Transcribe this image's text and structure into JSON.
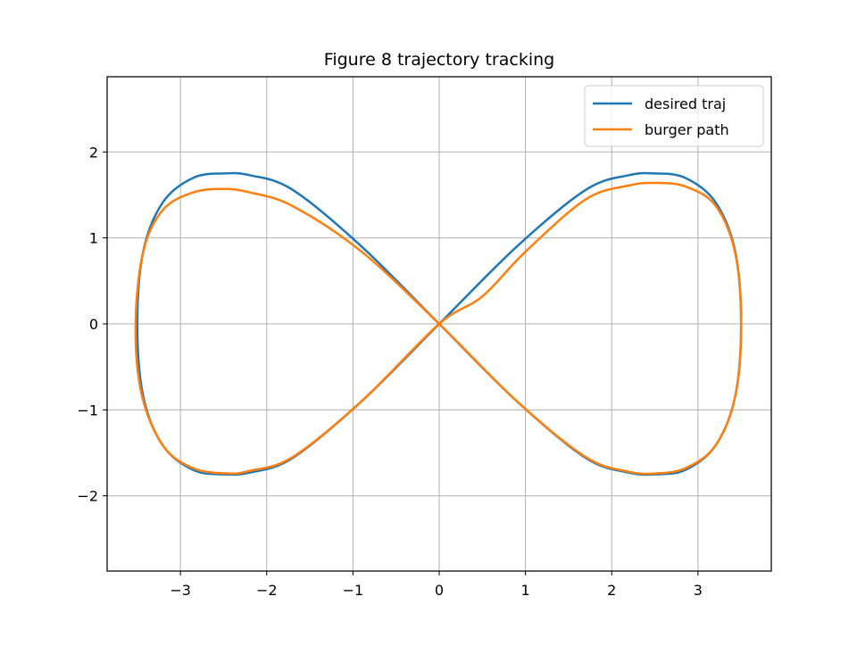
{
  "chart_data": {
    "type": "line",
    "title": "Figure 8 trajectory tracking",
    "xlabel": "",
    "ylabel": "",
    "xlim": [
      -3.85,
      3.85
    ],
    "ylim": [
      -2.875,
      2.875
    ],
    "x_ticks": [
      -3,
      -2,
      -1,
      0,
      1,
      2,
      3
    ],
    "y_ticks": [
      -2,
      -1,
      0,
      1,
      2
    ],
    "x_tick_labels": [
      "−3",
      "−2",
      "−1",
      "0",
      "1",
      "2",
      "3"
    ],
    "y_tick_labels": [
      "−2",
      "−1",
      "0",
      "1",
      "2"
    ],
    "grid": true,
    "legend_position": "upper right",
    "series": [
      {
        "name": "desired traj",
        "color": "#1f77b4",
        "x": [
          0.0,
          0.9,
          1.7,
          2.2,
          2.5,
          2.85,
          3.2,
          3.43,
          3.5,
          3.43,
          3.2,
          2.85,
          2.5,
          2.2,
          1.7,
          0.9,
          0.0,
          -0.9,
          -1.7,
          -2.2,
          -2.5,
          -2.85,
          -3.2,
          -3.43,
          -3.5,
          -3.43,
          -3.2,
          -2.85,
          -2.5,
          -2.2,
          -1.7,
          -0.9,
          0.0
        ],
        "y": [
          0.0,
          0.9,
          1.56,
          1.73,
          1.75,
          1.7,
          1.42,
          0.85,
          0.0,
          -0.85,
          -1.42,
          -1.7,
          -1.75,
          -1.73,
          -1.56,
          -0.9,
          0.0,
          0.9,
          1.56,
          1.73,
          1.75,
          1.7,
          1.42,
          0.85,
          0.0,
          -0.85,
          -1.42,
          -1.7,
          -1.75,
          -1.73,
          -1.56,
          -0.9,
          0.0
        ]
      },
      {
        "name": "burger path",
        "color": "#ff7f0e",
        "x": [
          0.0,
          0.5,
          1.0,
          1.7,
          2.2,
          2.5,
          2.85,
          3.2,
          3.43,
          3.5,
          3.43,
          3.2,
          2.85,
          2.5,
          2.2,
          1.7,
          0.9,
          0.0,
          -0.9,
          -1.7,
          -2.2,
          -2.5,
          -2.85,
          -3.2,
          -3.43,
          -3.52,
          -3.45,
          -3.2,
          -2.85,
          -2.45,
          -2.2,
          -1.7,
          -0.9,
          0.0
        ],
        "y": [
          0.0,
          0.32,
          0.84,
          1.45,
          1.61,
          1.64,
          1.6,
          1.38,
          0.83,
          0.0,
          -0.85,
          -1.42,
          -1.68,
          -1.74,
          -1.72,
          -1.55,
          -0.9,
          0.0,
          0.84,
          1.37,
          1.53,
          1.57,
          1.53,
          1.33,
          0.85,
          0.0,
          -0.82,
          -1.42,
          -1.68,
          -1.74,
          -1.71,
          -1.55,
          -0.9,
          0.0
        ]
      }
    ]
  }
}
